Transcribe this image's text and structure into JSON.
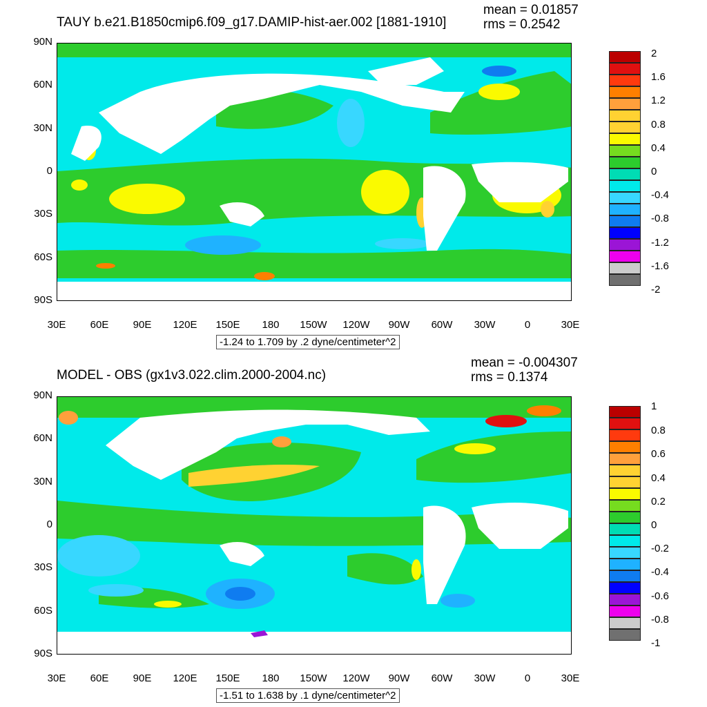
{
  "colors": {
    "land": "#ffffff",
    "positive_ramp": [
      "#2dcc2d",
      "#76dc1f",
      "#fafa00",
      "#ffd232",
      "#ffa03c",
      "#ff7f00",
      "#ff3a0e",
      "#e01010",
      "#bb0000"
    ],
    "negative_ramp": [
      "#00dcb4",
      "#00eaea",
      "#38d7ff",
      "#1fb2ff",
      "#0f7cf0",
      "#0000ff",
      "#9b15d6",
      "#ee00ee",
      "#cccccc",
      "#707070"
    ]
  },
  "panels": [
    {
      "title": "TAUY b.e21.B1850cmip6.f09_g17.DAMIP-hist-aer.002 [1881-1910]",
      "mean": "mean = 0.01857",
      "rms": "rms = 0.2542",
      "lat_labels": [
        "90N",
        "60N",
        "30N",
        "0",
        "30S",
        "60S",
        "90S"
      ],
      "lon_labels": [
        "30E",
        "60E",
        "90E",
        "120E",
        "150E",
        "180",
        "150W",
        "120W",
        "90W",
        "60W",
        "30W",
        "0",
        "30E"
      ],
      "note": "-1.24 to 1.709 by .2 dyne/centimeter^2",
      "colorbar_labels": [
        "2",
        "1.6",
        "1.2",
        "0.8",
        "0.4",
        "0",
        "-0.4",
        "-0.8",
        "-1.2",
        "-1.6",
        "-2"
      ],
      "colorbar_colors": [
        "#bb0000",
        "#e01010",
        "#ff3a0e",
        "#ff7f00",
        "#ffa03c",
        "#ffd232",
        "#fafa00",
        "#76dc1f",
        "#2dcc2d",
        "#00dcb4",
        "#00eaea",
        "#38d7ff",
        "#1fb2ff",
        "#0f7cf0",
        "#0000ff",
        "#9b15d6",
        "#ee00ee",
        "#cccccc",
        "#707070"
      ]
    },
    {
      "title": "MODEL - OBS (gx1v3.022.clim.2000-2004.nc)",
      "mean": "mean = -0.004307",
      "rms": "rms = 0.1374",
      "lat_labels": [
        "90N",
        "60N",
        "30N",
        "0",
        "30S",
        "60S",
        "90S"
      ],
      "lon_labels": [
        "30E",
        "60E",
        "90E",
        "120E",
        "150E",
        "180",
        "150W",
        "120W",
        "90W",
        "60W",
        "30W",
        "0",
        "30E"
      ],
      "note": "-1.51 to 1.638 by .1 dyne/centimeter^2",
      "colorbar_labels": [
        "1",
        "0.8",
        "0.6",
        "0.4",
        "0.2",
        "0",
        "-0.2",
        "-0.4",
        "-0.6",
        "-0.8",
        "-1"
      ],
      "colorbar_colors": [
        "#bb0000",
        "#e01010",
        "#ff3a0e",
        "#ff7f00",
        "#ffa03c",
        "#ffd232",
        "#fafa00",
        "#76dc1f",
        "#2dcc2d",
        "#00dcb4",
        "#00eaea",
        "#38d7ff",
        "#1fb2ff",
        "#0f7cf0",
        "#0000ff",
        "#9b15d6",
        "#ee00ee",
        "#cccccc",
        "#707070"
      ]
    }
  ]
}
